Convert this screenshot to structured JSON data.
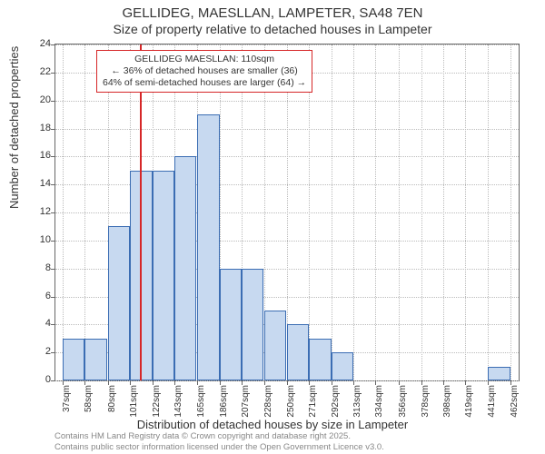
{
  "title_line1": "GELLIDEG, MAESLLAN, LAMPETER, SA48 7EN",
  "title_line2": "Size of property relative to detached houses in Lampeter",
  "y_axis_label": "Number of detached properties",
  "x_axis_label": "Distribution of detached houses by size in Lampeter",
  "histogram": {
    "type": "histogram",
    "bar_fill": "#c7d9f0",
    "bar_border": "#3b6db3",
    "background_color": "#ffffff",
    "grid_color": "#bbbbbb",
    "axis_color": "#666666",
    "ylim": [
      0,
      24
    ],
    "ytick_step": 2,
    "x_tick_labels": [
      "37sqm",
      "58sqm",
      "80sqm",
      "101sqm",
      "122sqm",
      "143sqm",
      "165sqm",
      "186sqm",
      "207sqm",
      "228sqm",
      "250sqm",
      "271sqm",
      "292sqm",
      "313sqm",
      "334sqm",
      "356sqm",
      "378sqm",
      "398sqm",
      "419sqm",
      "441sqm",
      "462sqm"
    ],
    "x_tick_positions": [
      37,
      58,
      80,
      101,
      122,
      143,
      165,
      186,
      207,
      228,
      250,
      271,
      292,
      313,
      334,
      356,
      378,
      398,
      419,
      441,
      462
    ],
    "x_range": [
      30,
      470
    ],
    "bar_bin_width": 21,
    "bars": [
      {
        "x": 37,
        "count": 3
      },
      {
        "x": 58,
        "count": 3
      },
      {
        "x": 80,
        "count": 11
      },
      {
        "x": 101,
        "count": 15
      },
      {
        "x": 122,
        "count": 15
      },
      {
        "x": 143,
        "count": 16
      },
      {
        "x": 165,
        "count": 19
      },
      {
        "x": 186,
        "count": 8
      },
      {
        "x": 207,
        "count": 8
      },
      {
        "x": 228,
        "count": 5
      },
      {
        "x": 250,
        "count": 4
      },
      {
        "x": 271,
        "count": 3
      },
      {
        "x": 292,
        "count": 2
      },
      {
        "x": 313,
        "count": 0
      },
      {
        "x": 334,
        "count": 0
      },
      {
        "x": 356,
        "count": 0
      },
      {
        "x": 378,
        "count": 0
      },
      {
        "x": 398,
        "count": 0
      },
      {
        "x": 419,
        "count": 0
      },
      {
        "x": 441,
        "count": 1
      },
      {
        "x": 462,
        "count": 0
      }
    ],
    "marker": {
      "x_value": 110,
      "color": "#d62728",
      "line_width": 2
    },
    "annotation": {
      "line1": "GELLIDEG MAESLLAN: 110sqm",
      "line2": "← 36% of detached houses are smaller (36)",
      "line3": "64% of semi-detached houses are larger (64) →",
      "border_color": "#d62728",
      "background": "#ffffff",
      "fontsize": 10.5
    }
  },
  "footer_line1": "Contains HM Land Registry data © Crown copyright and database right 2025.",
  "footer_line2": "Contains public sector information licensed under the Open Government Licence v3.0."
}
